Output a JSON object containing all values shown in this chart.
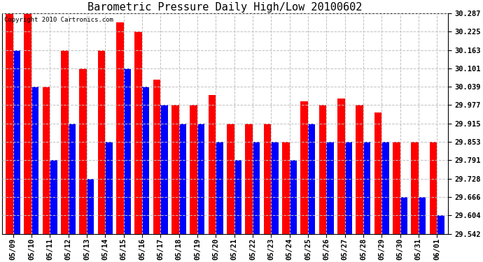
{
  "title": "Barometric Pressure Daily High/Low 20100602",
  "copyright": "Copyright 2010 Cartronics.com",
  "dates": [
    "05/09",
    "05/10",
    "05/11",
    "05/12",
    "05/13",
    "05/14",
    "05/15",
    "05/16",
    "05/17",
    "05/18",
    "05/19",
    "05/20",
    "05/21",
    "05/22",
    "05/23",
    "05/24",
    "05/25",
    "05/26",
    "05/27",
    "05/28",
    "05/29",
    "05/30",
    "05/31",
    "06/01"
  ],
  "highs": [
    30.287,
    30.287,
    30.039,
    30.163,
    30.101,
    30.163,
    30.256,
    30.225,
    30.063,
    29.977,
    29.977,
    30.01,
    29.915,
    29.915,
    29.915,
    29.853,
    29.99,
    29.977,
    30.0,
    29.977,
    29.953,
    29.853,
    29.853,
    29.853
  ],
  "lows": [
    30.163,
    30.039,
    29.791,
    29.915,
    29.728,
    29.853,
    30.101,
    30.039,
    29.977,
    29.915,
    29.915,
    29.853,
    29.791,
    29.853,
    29.853,
    29.791,
    29.915,
    29.853,
    29.853,
    29.853,
    29.853,
    29.666,
    29.666,
    29.604
  ],
  "y_ticks": [
    29.542,
    29.604,
    29.666,
    29.728,
    29.791,
    29.853,
    29.915,
    29.977,
    30.039,
    30.101,
    30.163,
    30.225,
    30.287
  ],
  "ylim": [
    29.542,
    30.287
  ],
  "bar_width": 0.4,
  "high_color": "#ff0000",
  "low_color": "#0000ff",
  "bg_color": "#ffffff",
  "grid_color": "#c0c0c0",
  "title_fontsize": 11,
  "tick_fontsize": 7.5
}
